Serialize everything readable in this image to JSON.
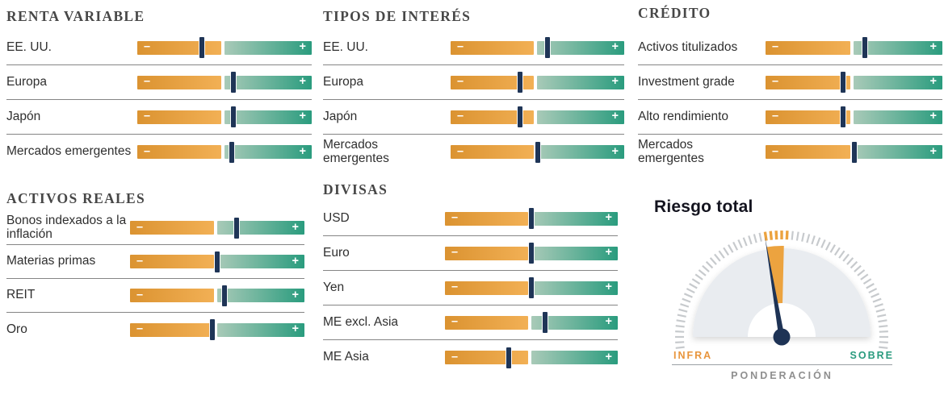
{
  "colors": {
    "orange_start": "#db9331",
    "orange_end": "#f2b055",
    "green_start": "#a9cab8",
    "green_end": "#2a9c7e",
    "marker_navy": "#1f3557",
    "infra_orange": "#e8953c",
    "sobre_teal": "#2a9b7e",
    "tick_gray": "#c7cacd",
    "tick_orange": "#eca33f",
    "needle_navy": "#1e3355",
    "dome_gray": "#e9ecf0"
  },
  "slider_glyphs": {
    "minus": "–",
    "plus": "+"
  },
  "chart_data": {
    "type": "bar",
    "note": "Positioning sliders: marker position is % along each under/overweight bar (0 = max underweight, 100 = max overweight, 50 = neutral)",
    "sections": [
      {
        "id": "renta-variable",
        "title": "RENTA VARIABLE",
        "rows": [
          {
            "label": "EE. UU.",
            "position": 37
          },
          {
            "label": "Europa",
            "position": 55
          },
          {
            "label": "Japón",
            "position": 55
          },
          {
            "label": "Mercados emergentes",
            "position": 54
          }
        ]
      },
      {
        "id": "tipos-de-interes",
        "title": "TIPOS DE INTERÉS",
        "rows": [
          {
            "label": "EE. UU.",
            "position": 56
          },
          {
            "label": "Europa",
            "position": 40
          },
          {
            "label": "Japón",
            "position": 40
          },
          {
            "label": "Mercados emergentes",
            "position": 50
          }
        ]
      },
      {
        "id": "credito",
        "title": "CRÉDITO",
        "rows": [
          {
            "label": "Activos titulizados",
            "position": 56
          },
          {
            "label": "Investment grade",
            "position": 44
          },
          {
            "label": "Alto rendimiento",
            "position": 44
          },
          {
            "label": "Mercados emergentes",
            "position": 50
          }
        ]
      },
      {
        "id": "activos-reales",
        "title": "ACTIVOS REALES",
        "rows": [
          {
            "label": "Bonos indexados a la inflación",
            "position": 61
          },
          {
            "label": "Materias primas",
            "position": 50
          },
          {
            "label": "REIT",
            "position": 54
          },
          {
            "label": "Oro",
            "position": 47
          }
        ]
      },
      {
        "id": "divisas",
        "title": "DIVISAS",
        "rows": [
          {
            "label": "USD",
            "position": 50
          },
          {
            "label": "Euro",
            "position": 50
          },
          {
            "label": "Yen",
            "position": 50
          },
          {
            "label": "ME excl. Asia",
            "position": 58
          },
          {
            "label": "ME Asia",
            "position": 37
          }
        ]
      }
    ],
    "gauge": {
      "title": "Riesgo total",
      "left_label": "INFRA",
      "right_label": "SOBRE",
      "bottom_label": "PONDERACIÓN",
      "needle_angle_deg": -9.5,
      "wedge_start_deg": -9.5,
      "wedge_end_deg": 1.4,
      "orange_ticks_start_deg": -10.5,
      "orange_ticks_end_deg": 4,
      "tick_step_deg": 3,
      "tick_range_deg": 96
    }
  }
}
